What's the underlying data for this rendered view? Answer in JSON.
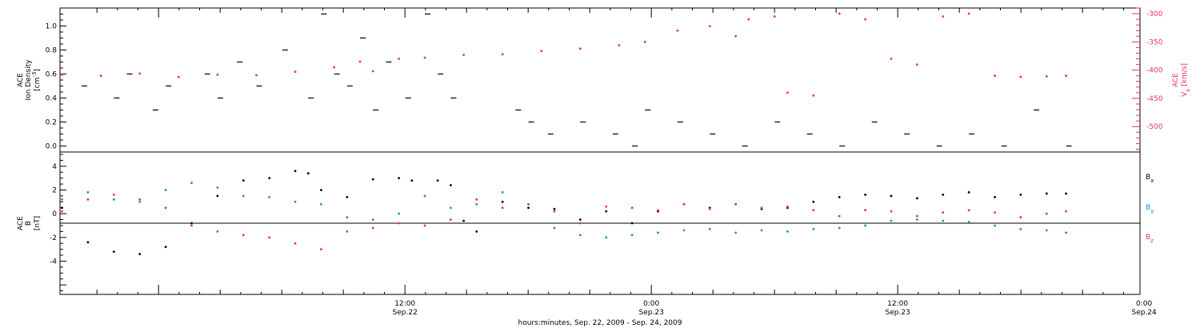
{
  "chart_data": [
    {
      "type": "scatter",
      "panel": "top",
      "ylabel_lines": [
        "ACE",
        "Ion Density"
      ],
      "yunit": "[cm",
      "yunit_sup": "-3",
      "yunit_end": "]",
      "ylim": [
        -0.05,
        1.15
      ],
      "yticks": [
        "0.0",
        "0.2",
        "0.4",
        "0.6",
        "0.8",
        "1.0"
      ],
      "right_axis": {
        "ylabel_base": "V",
        "ylabel_sub": "x",
        "ylabel_top": "ACE",
        "yunit": "[km/s]",
        "ylim": [
          -545,
          -290
        ],
        "yticks": [
          "-300",
          "-350",
          "-400",
          "-450",
          "-500"
        ],
        "color": "#e8305a"
      },
      "series": [
        {
          "color": "#000000",
          "points": [
            [
              3,
              0.5
            ],
            [
              8,
              0.4
            ],
            [
              10,
              0.6
            ],
            [
              14,
              0.3
            ],
            [
              16,
              0.5
            ],
            [
              22,
              0.6
            ],
            [
              24,
              0.4
            ],
            [
              27,
              0.7
            ],
            [
              30,
              0.5
            ],
            [
              34,
              0.8
            ],
            [
              38,
              0.4
            ],
            [
              40,
              1.1
            ],
            [
              42,
              0.6
            ],
            [
              44,
              0.5
            ],
            [
              46,
              0.9
            ],
            [
              48,
              0.3
            ],
            [
              50,
              0.7
            ],
            [
              53,
              0.4
            ],
            [
              56,
              1.1
            ],
            [
              58,
              0.6
            ],
            [
              60,
              0.4
            ],
            [
              70,
              0.3
            ],
            [
              72,
              0.2
            ],
            [
              75,
              0.1
            ],
            [
              80,
              0.2
            ],
            [
              85,
              0.1
            ],
            [
              88,
              0.0
            ],
            [
              90,
              0.3
            ],
            [
              95,
              0.2
            ],
            [
              100,
              0.1
            ],
            [
              105,
              0.0
            ],
            [
              110,
              0.2
            ],
            [
              115,
              0.1
            ],
            [
              120,
              0.0
            ],
            [
              125,
              0.2
            ],
            [
              130,
              0.1
            ],
            [
              135,
              0.0
            ],
            [
              140,
              0.1
            ],
            [
              145,
              0.0
            ],
            [
              150,
              0.3
            ],
            [
              155,
              0.0
            ]
          ]
        },
        {
          "color": "#e8305a",
          "points": [
            [
              0,
              -408
            ],
            [
              6,
              -410
            ],
            [
              12,
              -406
            ],
            [
              18,
              -412
            ],
            [
              24,
              -408
            ],
            [
              30,
              -409
            ],
            [
              36,
              -403
            ],
            [
              42,
              -395
            ],
            [
              46,
              -385
            ],
            [
              48,
              -402
            ],
            [
              52,
              -380
            ],
            [
              56,
              -378
            ],
            [
              62,
              -373
            ],
            [
              68,
              -372
            ],
            [
              74,
              -366
            ],
            [
              80,
              -362
            ],
            [
              86,
              -356
            ],
            [
              90,
              -350
            ],
            [
              95,
              -330
            ],
            [
              100,
              -322
            ],
            [
              104,
              -340
            ],
            [
              106,
              -310
            ],
            [
              110,
              -305
            ],
            [
              112,
              -440
            ],
            [
              116,
              -445
            ],
            [
              120,
              -300
            ],
            [
              124,
              -310
            ],
            [
              128,
              -380
            ],
            [
              132,
              -390
            ],
            [
              136,
              -305
            ],
            [
              140,
              -300
            ],
            [
              144,
              -410
            ],
            [
              148,
              -412
            ],
            [
              152,
              -411
            ],
            [
              155,
              -410
            ]
          ]
        }
      ]
    },
    {
      "type": "scatter",
      "panel": "bottom",
      "ylabel_top": "ACE",
      "ylabel_base": "B",
      "yunit": "[nT]",
      "ylim": [
        -6.8,
        5.2
      ],
      "yticks": [
        "4",
        "2",
        "0",
        "-2",
        "-4"
      ],
      "reference_line": 0,
      "series": [
        {
          "name_base": "B",
          "name_sub": "x",
          "color": "#000000",
          "points": [
            [
              0,
              0.5
            ],
            [
              4,
              -2.4
            ],
            [
              8,
              -3.2
            ],
            [
              12,
              -3.4
            ],
            [
              16,
              -2.8
            ],
            [
              20,
              -0.8
            ],
            [
              24,
              1.5
            ],
            [
              28,
              2.8
            ],
            [
              32,
              3.0
            ],
            [
              36,
              3.6
            ],
            [
              38,
              3.4
            ],
            [
              40,
              2.0
            ],
            [
              44,
              1.4
            ],
            [
              48,
              2.9
            ],
            [
              52,
              3.0
            ],
            [
              54,
              2.8
            ],
            [
              58,
              2.8
            ],
            [
              60,
              2.4
            ],
            [
              62,
              -0.6
            ],
            [
              64,
              -1.5
            ],
            [
              68,
              1.0
            ],
            [
              72,
              0.5
            ],
            [
              76,
              0.4
            ],
            [
              80,
              -0.5
            ],
            [
              84,
              0.2
            ],
            [
              88,
              -0.8
            ],
            [
              92,
              0.2
            ],
            [
              96,
              0.8
            ],
            [
              100,
              0.5
            ],
            [
              104,
              0.8
            ],
            [
              108,
              0.4
            ],
            [
              112,
              0.5
            ],
            [
              116,
              1.0
            ],
            [
              120,
              1.4
            ],
            [
              124,
              1.6
            ],
            [
              128,
              1.5
            ],
            [
              132,
              1.3
            ],
            [
              136,
              1.6
            ],
            [
              140,
              1.8
            ],
            [
              144,
              1.4
            ],
            [
              148,
              1.6
            ],
            [
              152,
              1.7
            ],
            [
              155,
              1.7
            ]
          ]
        },
        {
          "name_base": "B",
          "name_sub": "y",
          "color": "#1e88d8",
          "points": [
            [
              0,
              1.2
            ],
            [
              4,
              1.8
            ],
            [
              8,
              1.2
            ],
            [
              12,
              1.0
            ],
            [
              16,
              2.0
            ],
            [
              20,
              2.6
            ],
            [
              24,
              2.2
            ],
            [
              28,
              1.5
            ],
            [
              32,
              1.4
            ],
            [
              36,
              1.0
            ],
            [
              40,
              0.8
            ],
            [
              44,
              -0.3
            ],
            [
              48,
              -0.5
            ],
            [
              52,
              0.0
            ],
            [
              56,
              1.5
            ],
            [
              60,
              0.5
            ],
            [
              64,
              0.8
            ],
            [
              68,
              1.8
            ],
            [
              72,
              0.8
            ],
            [
              76,
              -1.2
            ],
            [
              80,
              -1.8
            ],
            [
              84,
              -2.0
            ],
            [
              88,
              -1.8
            ],
            [
              92,
              -1.6
            ],
            [
              96,
              -1.4
            ],
            [
              100,
              -1.3
            ],
            [
              104,
              -1.6
            ],
            [
              108,
              -1.4
            ],
            [
              112,
              -1.5
            ],
            [
              116,
              -1.3
            ],
            [
              120,
              -1.2
            ],
            [
              124,
              -1.0
            ],
            [
              128,
              -0.6
            ],
            [
              132,
              -0.5
            ],
            [
              136,
              -0.6
            ],
            [
              140,
              -0.7
            ],
            [
              144,
              -1.0
            ],
            [
              148,
              -1.3
            ],
            [
              152,
              -1.4
            ],
            [
              155,
              -1.6
            ]
          ]
        },
        {
          "name_base": "B",
          "name_sub": "z",
          "color": "#e8305a",
          "points": [
            [
              0,
              0.2
            ],
            [
              4,
              1.2
            ],
            [
              8,
              1.6
            ],
            [
              12,
              1.2
            ],
            [
              16,
              0.5
            ],
            [
              20,
              -1.0
            ],
            [
              24,
              -1.5
            ],
            [
              28,
              -1.8
            ],
            [
              32,
              -2.0
            ],
            [
              36,
              -2.5
            ],
            [
              40,
              -3.0
            ],
            [
              44,
              -1.5
            ],
            [
              48,
              -1.2
            ],
            [
              52,
              -0.8
            ],
            [
              56,
              -1.0
            ],
            [
              60,
              -0.5
            ],
            [
              64,
              1.2
            ],
            [
              68,
              0.5
            ],
            [
              72,
              0.8
            ],
            [
              76,
              0.2
            ],
            [
              80,
              -0.8
            ],
            [
              84,
              0.6
            ],
            [
              88,
              0.5
            ],
            [
              92,
              0.3
            ],
            [
              96,
              0.8
            ],
            [
              100,
              0.4
            ],
            [
              104,
              0.8
            ],
            [
              108,
              0.5
            ],
            [
              112,
              0.6
            ],
            [
              116,
              0.3
            ],
            [
              120,
              -0.2
            ],
            [
              124,
              0.3
            ],
            [
              128,
              0.2
            ],
            [
              132,
              -0.2
            ],
            [
              136,
              0.1
            ],
            [
              140,
              0.3
            ],
            [
              144,
              0.1
            ],
            [
              148,
              -0.3
            ],
            [
              152,
              0.0
            ],
            [
              155,
              0.2
            ]
          ]
        }
      ]
    }
  ],
  "time_axis": {
    "xlim_hours": [
      -4.8,
      47.8
    ],
    "major_ticks": [
      {
        "hour": 12,
        "time": "12:00",
        "date": "Sep.22"
      },
      {
        "hour": 24,
        "time": "0:00",
        "date": "Sep.23"
      },
      {
        "hour": 36,
        "time": "12:00",
        "date": "Sep.23"
      },
      {
        "hour": 48,
        "time": "0:00",
        "date": "Sep.24"
      }
    ],
    "xlabel": "hours:minutes, Sep. 22, 2009 - Sep. 24, 2009"
  }
}
